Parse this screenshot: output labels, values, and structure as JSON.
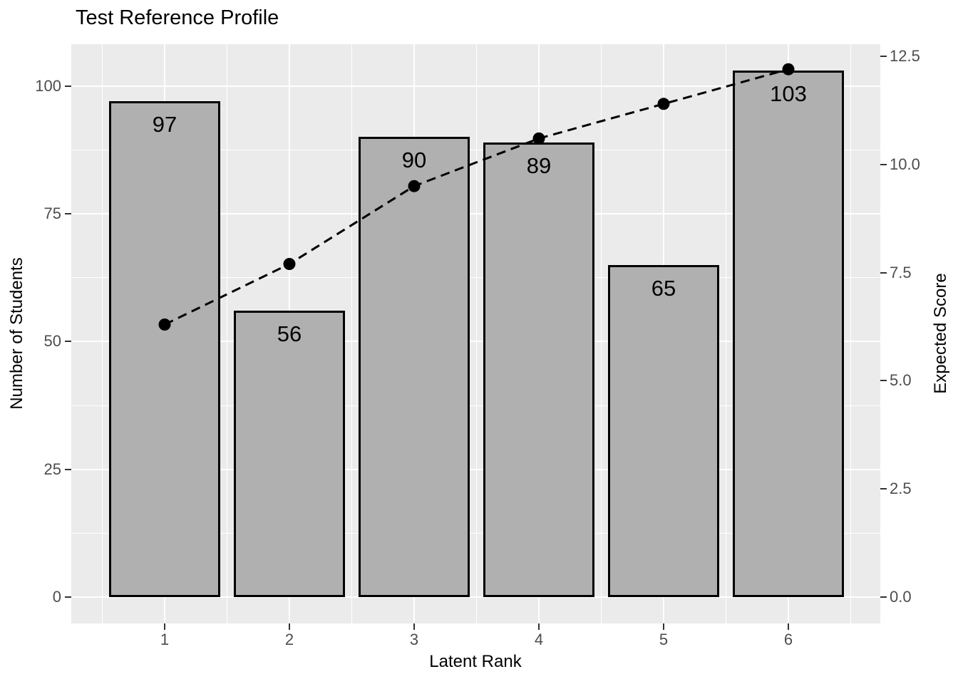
{
  "title": "Test Reference Profile",
  "chart_data": {
    "type": "bar+line-dual-axis",
    "title": "Test Reference Profile",
    "xlabel": "Latent Rank",
    "ylabel_left": "Number of Students",
    "ylabel_right": "Expected Score",
    "categories": [
      "1",
      "2",
      "3",
      "4",
      "5",
      "6"
    ],
    "series": [
      {
        "name": "Number of Students",
        "type": "bar",
        "axis": "left",
        "values": [
          97,
          56,
          90,
          89,
          65,
          103
        ],
        "bar_labels": [
          "97",
          "56",
          "90",
          "89",
          "65",
          "103"
        ],
        "fill": "#B0B0B0",
        "stroke": "#000000"
      },
      {
        "name": "Expected Score",
        "type": "line",
        "axis": "right",
        "style": "dashed",
        "marker": "filled-circle",
        "color": "#000000",
        "values": [
          6.3,
          7.7,
          9.5,
          10.6,
          11.4,
          12.2
        ]
      }
    ],
    "y_axis_left": {
      "ticks": [
        "0",
        "25",
        "50",
        "75",
        "100"
      ],
      "range": [
        -5.15,
        108.2
      ]
    },
    "y_axis_right": {
      "ticks": [
        "0.0",
        "2.5",
        "5.0",
        "7.5",
        "10.0",
        "12.5"
      ],
      "range": [
        -0.61,
        12.78
      ]
    },
    "x_axis": {
      "ticks": [
        "1",
        "2",
        "3",
        "4",
        "5",
        "6"
      ],
      "range": [
        0.25,
        6.75
      ]
    },
    "grid": {
      "visible": true,
      "major_color": "#FFFFFF",
      "minor_color": "#FFFFFF"
    },
    "legend": "none",
    "colors": {
      "panel_bg": "#EBEBEB",
      "figure_bg": "#FFFFFF",
      "tick_label": "#4D4D4D",
      "tick_mark": "#333333",
      "text": "#000000"
    }
  }
}
